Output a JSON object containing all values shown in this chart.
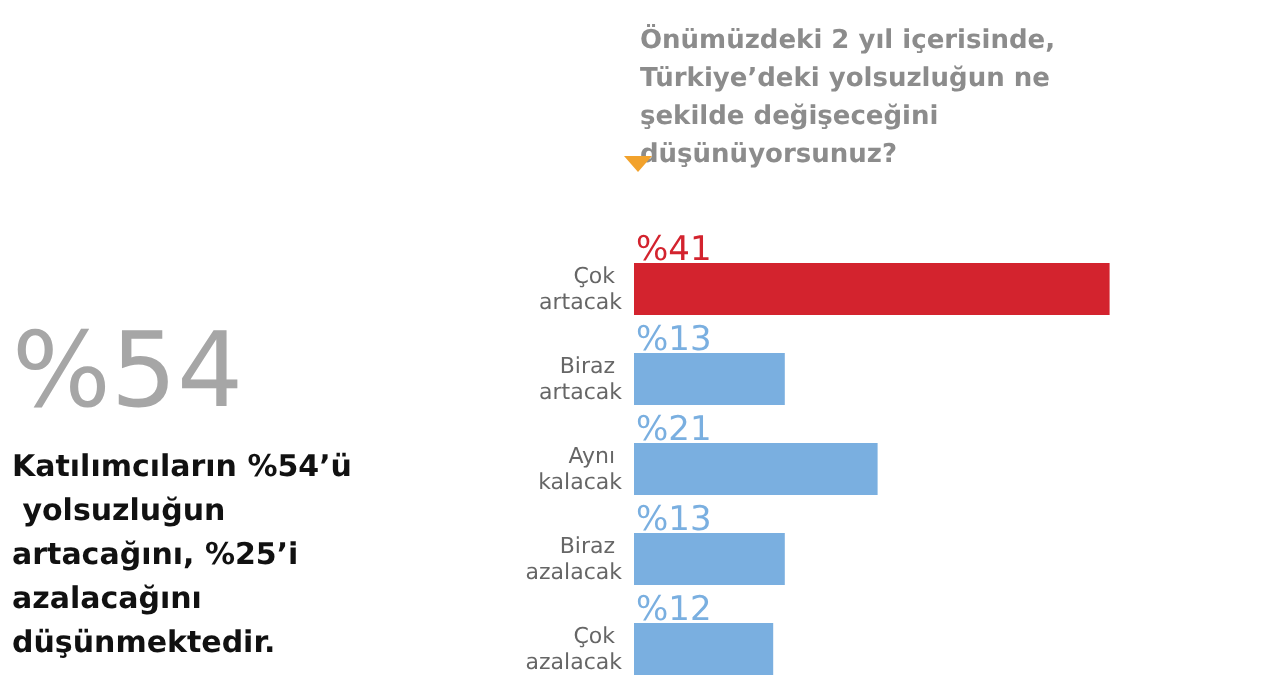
{
  "chart_data": {
    "type": "bar",
    "orientation": "horizontal",
    "title": "Önümüzdeki 2 yıl içerisinde, Türkiye’deki yolsuzluğun ne şekilde değişeceğini düşünüyorsunuz?",
    "categories": [
      "Çok artacak",
      "Biraz artacak",
      "Aynı kalacak",
      "Biraz azalacak",
      "Çok azalacak"
    ],
    "values": [
      41,
      13,
      21,
      13,
      12
    ],
    "colors": [
      "#d3232e",
      "#7aafe0",
      "#7aafe0",
      "#7aafe0",
      "#7aafe0"
    ],
    "value_labels": [
      "%41",
      "%13",
      "%21",
      "%13",
      "%12"
    ],
    "annotations": [
      "%54",
      "Katılımcıların %54’ü yolsuzluğun artacağını, %25’i azalacağını düşünmektedir."
    ]
  }
}
